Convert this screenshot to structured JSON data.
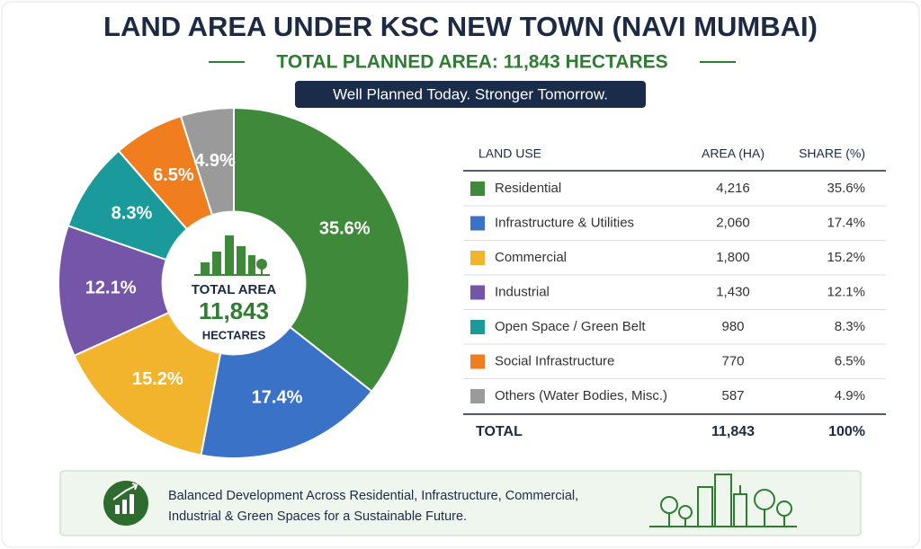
{
  "chart_data": {
    "type": "pie",
    "title": "LAND AREA UNDER KSC NEW TOWN (NAVI MUMBAI)",
    "subtitle": "TOTAL PLANNED AREA: 11,843 HECTARES",
    "tagline": "Well Planned Today. Stronger Tomorrow.",
    "categories": [
      "Residential",
      "Infrastructure & Utilities",
      "Commercial",
      "Industrial",
      "Open Space / Green Belt",
      "Social Infrastructure",
      "Others (Water Bodies, Misc.)"
    ],
    "values": [
      35.6,
      17.4,
      15.2,
      12.1,
      8.3,
      6.5,
      4.9
    ],
    "value_labels": [
      "35.6%",
      "17.4%",
      "15.2%",
      "12.1%",
      "8.3%",
      "6.5%",
      "4.9%"
    ],
    "colors": [
      "#3f8a3a",
      "#3a72c8",
      "#f2b42c",
      "#7455a8",
      "#1a9a9a",
      "#f07d1e",
      "#9a9a9a"
    ],
    "center": {
      "label": "TOTAL AREA",
      "value": "11,843",
      "unit": "HECTARES"
    }
  },
  "table": {
    "header": [
      "LAND USE",
      "AREA (HA)",
      "SHARE (%)"
    ],
    "rows": [
      [
        "Residential",
        "4,216",
        "35.6%"
      ],
      [
        "Infrastructure & Utilities",
        "2,060",
        "17.4%"
      ],
      [
        "Commercial",
        "1,800",
        "15.2%"
      ],
      [
        "Industrial",
        "1,430",
        "12.1%"
      ],
      [
        "Open Space / Green Belt",
        "980",
        "8.3%"
      ],
      [
        "Social Infrastructure",
        "770",
        "6.5%"
      ],
      [
        "Others (Water Bodies, Misc.)",
        "587",
        "4.9%"
      ]
    ],
    "total": [
      "TOTAL",
      "11,843",
      "100%"
    ]
  },
  "footer": {
    "lines": [
      "Balanced Development Across Residential, Infrastructure, Commercial,",
      "Industrial & Green Spaces for a Sustainable Future."
    ]
  }
}
